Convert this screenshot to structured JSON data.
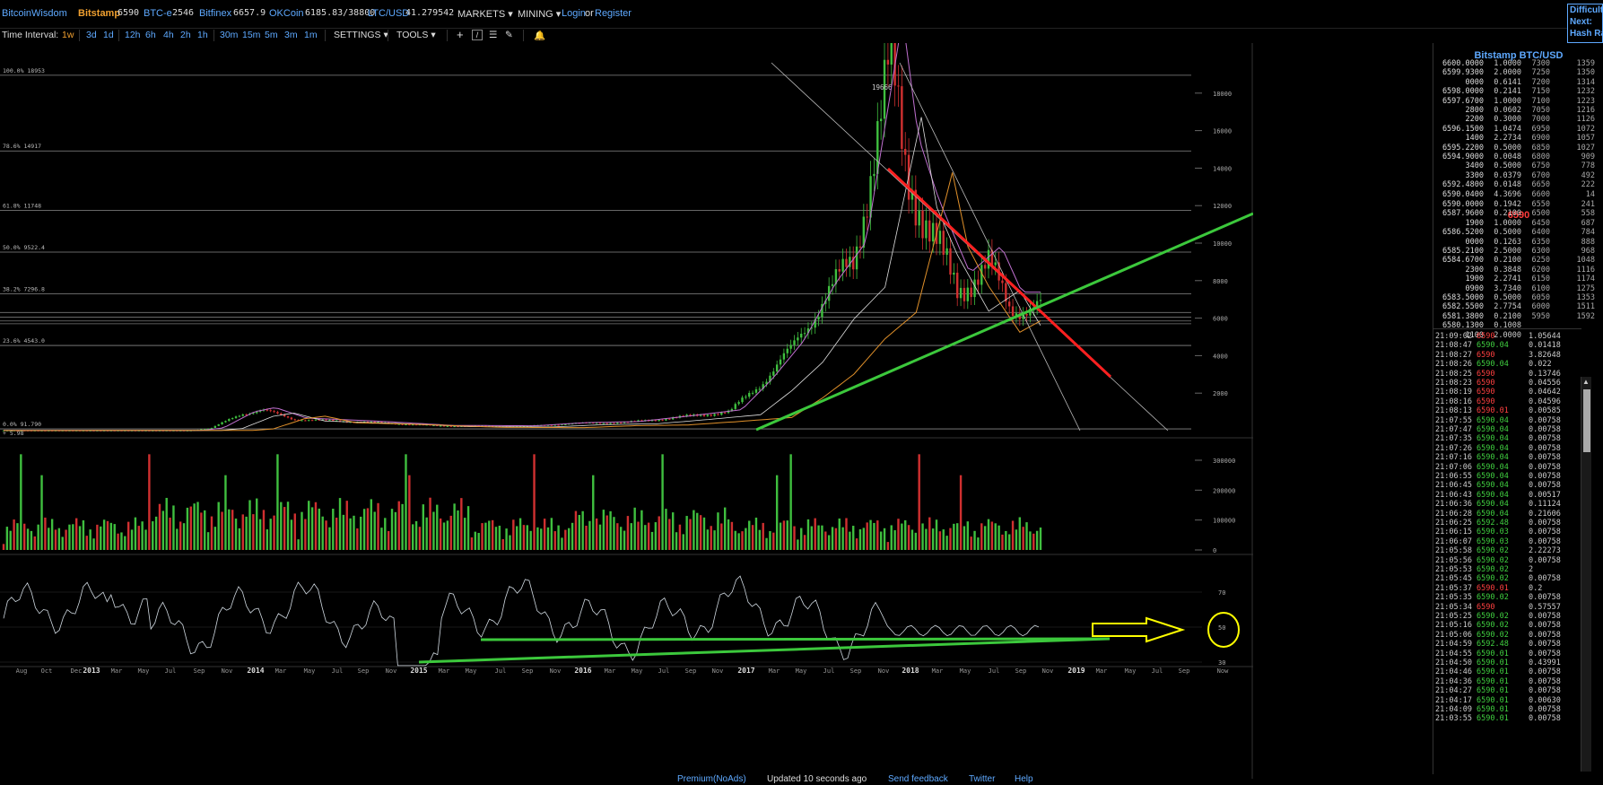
{
  "topbar": {
    "brand": "BitcoinWisdom",
    "markets": [
      {
        "name": "Bitstamp",
        "price": "6590",
        "active": true
      },
      {
        "name": "BTC-e",
        "price": "2546"
      },
      {
        "name": "Bitfinex",
        "price": "6657.9"
      },
      {
        "name": "OKCoin",
        "price": "6185.83/38800"
      },
      {
        "name": "LTC/USD",
        "price": "41.279542"
      }
    ],
    "menu_markets": "MARKETS",
    "menu_mining": "MINING",
    "login": "Login",
    "or": "or",
    "register": "Register"
  },
  "corner": {
    "line1": "Difficulty",
    "line2": "Next:",
    "line3": "Hash Rate"
  },
  "toolbar": {
    "label": "Time Interval:",
    "intervals": [
      "1w",
      "3d",
      "1d",
      "12h",
      "6h",
      "4h",
      "2h",
      "1h",
      "30m",
      "15m",
      "5m",
      "3m",
      "1m"
    ],
    "active_interval": "1w",
    "settings": "SETTINGS",
    "tools": "TOOLS"
  },
  "orderbook": {
    "title": "Bitstamp BTC/USD",
    "mid_price": "6590",
    "asks": [
      [
        "6600.0000",
        "1.0000",
        "7300",
        "1359"
      ],
      [
        "6599.9300",
        "2.0000",
        "7250",
        "1350"
      ],
      [
        "0000",
        "0.6141",
        "7200",
        "1314"
      ],
      [
        "6598.0000",
        "0.2141",
        "7150",
        "1232"
      ],
      [
        "6597.6700",
        "1.0000",
        "7100",
        "1223"
      ],
      [
        "2800",
        "0.0602",
        "7050",
        "1216"
      ],
      [
        "2200",
        "0.3000",
        "7000",
        "1126"
      ],
      [
        "6596.1500",
        "1.0474",
        "6950",
        "1072"
      ],
      [
        "1400",
        "2.2734",
        "6900",
        "1057"
      ],
      [
        "6595.2200",
        "0.5000",
        "6850",
        "1027"
      ],
      [
        "6594.9000",
        "0.0048",
        "6800",
        "909"
      ],
      [
        "3400",
        "0.5000",
        "6750",
        "778"
      ],
      [
        "3300",
        "0.0379",
        "6700",
        "492"
      ],
      [
        "6592.4800",
        "0.0148",
        "6650",
        "222"
      ],
      [
        "6590.0400",
        "4.3696",
        "6600",
        "14"
      ]
    ],
    "bids": [
      [
        "6590.0000",
        "0.1942",
        "6550",
        "241"
      ],
      [
        "6587.9600",
        "0.2100",
        "6500",
        "558"
      ],
      [
        "1900",
        "1.0000",
        "6450",
        "687"
      ],
      [
        "6586.5200",
        "0.5000",
        "6400",
        "784"
      ],
      [
        "0000",
        "0.1263",
        "6350",
        "888"
      ],
      [
        "6585.2100",
        "2.5000",
        "6300",
        "968"
      ],
      [
        "6584.6700",
        "0.2100",
        "6250",
        "1048"
      ],
      [
        "2300",
        "0.3848",
        "6200",
        "1116"
      ],
      [
        "1900",
        "2.2741",
        "6150",
        "1174"
      ],
      [
        "0900",
        "3.7340",
        "6100",
        "1275"
      ],
      [
        "6583.5000",
        "0.5000",
        "6050",
        "1353"
      ],
      [
        "6582.5500",
        "2.7754",
        "6000",
        "1511"
      ],
      [
        "6581.3800",
        "0.2100",
        "5950",
        "1592"
      ],
      [
        "6580.1300",
        "0.1008",
        "",
        ""
      ],
      [
        "1100",
        "2.0000",
        "",
        ""
      ]
    ]
  },
  "trades": [
    [
      "21:09:02",
      "6590",
      "1.05644"
    ],
    [
      "21:08:47",
      "6590.04",
      "0.01418"
    ],
    [
      "21:08:27",
      "6590",
      "3.82648"
    ],
    [
      "21:08:26",
      "6590.04",
      "0.022"
    ],
    [
      "21:08:25",
      "6590",
      "0.13746"
    ],
    [
      "21:08:23",
      "6590",
      "0.04556"
    ],
    [
      "21:08:19",
      "6590",
      "0.04642"
    ],
    [
      "21:08:16",
      "6590",
      "0.04596"
    ],
    [
      "21:08:13",
      "6590.01",
      "0.00585"
    ],
    [
      "21:07:55",
      "6590.04",
      "0.00758"
    ],
    [
      "21:07:47",
      "6590.04",
      "0.00758"
    ],
    [
      "21:07:35",
      "6590.04",
      "0.00758"
    ],
    [
      "21:07:26",
      "6590.04",
      "0.00758"
    ],
    [
      "21:07:16",
      "6590.04",
      "0.00758"
    ],
    [
      "21:07:06",
      "6590.04",
      "0.00758"
    ],
    [
      "21:06:55",
      "6590.04",
      "0.00758"
    ],
    [
      "21:06:45",
      "6590.04",
      "0.00758"
    ],
    [
      "21:06:43",
      "6590.04",
      "0.00517"
    ],
    [
      "21:06:36",
      "6590.04",
      "0.11124"
    ],
    [
      "21:06:28",
      "6590.04",
      "0.21606"
    ],
    [
      "21:06:25",
      "6592.48",
      "0.00758"
    ],
    [
      "21:06:15",
      "6590.03",
      "0.00758"
    ],
    [
      "21:06:07",
      "6590.03",
      "0.00758"
    ],
    [
      "21:05:58",
      "6590.02",
      "2.22273"
    ],
    [
      "21:05:56",
      "6590.02",
      "0.00758"
    ],
    [
      "21:05:53",
      "6590.02",
      "2"
    ],
    [
      "21:05:45",
      "6590.02",
      "0.00758"
    ],
    [
      "21:05:37",
      "6590.01",
      "0.2"
    ],
    [
      "21:05:35",
      "6590.02",
      "0.00758"
    ],
    [
      "21:05:34",
      "6590",
      "0.57557"
    ],
    [
      "21:05:25",
      "6590.02",
      "0.00758"
    ],
    [
      "21:05:16",
      "6590.02",
      "0.00758"
    ],
    [
      "21:05:06",
      "6590.02",
      "0.00758"
    ],
    [
      "21:04:59",
      "6592.48",
      "0.00758"
    ],
    [
      "21:04:55",
      "6590.01",
      "0.00758"
    ],
    [
      "21:04:50",
      "6590.01",
      "0.43991"
    ],
    [
      "21:04:46",
      "6590.01",
      "0.00758"
    ],
    [
      "21:04:36",
      "6590.01",
      "0.00758"
    ],
    [
      "21:04:27",
      "6590.01",
      "0.00758"
    ],
    [
      "21:04:17",
      "6590.01",
      "0.00630"
    ],
    [
      "21:04:09",
      "6590.01",
      "0.00758"
    ],
    [
      "21:03:55",
      "6590.01",
      "0.00758"
    ]
  ],
  "chart_data": {
    "type": "line",
    "title": "",
    "price_axis_ticks": [
      2000,
      4000,
      6000,
      8000,
      10000,
      12000,
      14000,
      16000,
      18000
    ],
    "price_ylim": [
      0,
      20000
    ],
    "volume_axis_ticks": [
      "0",
      "100000",
      "200000",
      "300000"
    ],
    "rsi_axis_ticks": [
      "30",
      "50",
      "70"
    ],
    "fib_levels": [
      {
        "label": "100.0% 18953",
        "value": 18953
      },
      {
        "label": "78.6% 14917",
        "value": 14917
      },
      {
        "label": "61.8% 11748",
        "value": 11748
      },
      {
        "label": "50.0% 9522.4",
        "value": 9522.4
      },
      {
        "label": "38.2% 7296.8",
        "value": 7296.8
      },
      {
        "label": "23.6% 4543.0",
        "value": 4543.0
      },
      {
        "label": "0.0% 91.790",
        "value": 91.79
      }
    ],
    "extra_label": "+ 5.98",
    "peak_label": "19666",
    "x_ticks": [
      "Aug",
      "Oct",
      "Dec",
      "2013",
      "Mar",
      "May",
      "Jul",
      "Sep",
      "Nov",
      "2014",
      "Mar",
      "May",
      "Jul",
      "Sep",
      "Nov",
      "2015",
      "Mar",
      "May",
      "Jul",
      "Sep",
      "Nov",
      "2016",
      "Mar",
      "May",
      "Jul",
      "Sep",
      "Nov",
      "2017",
      "Mar",
      "May",
      "Jul",
      "Sep",
      "Nov",
      "2018",
      "Mar",
      "May",
      "Jul",
      "Sep",
      "Nov",
      "2019",
      "Mar",
      "May",
      "Jul",
      "Sep",
      "Now"
    ],
    "grid": false,
    "colors": {
      "up": "#3fbf3f",
      "down": "#d03030",
      "trend_green": "#3cc83c",
      "trend_red": "#ff2020",
      "arrow": "#ffff00",
      "ma_purple": "#c070d0",
      "ma_orange": "#e0902a"
    }
  },
  "footer": {
    "premium": "Premium(NoAds)",
    "updated": "Updated 10 seconds ago",
    "feedback": "Send feedback",
    "twitter": "Twitter",
    "help": "Help"
  }
}
